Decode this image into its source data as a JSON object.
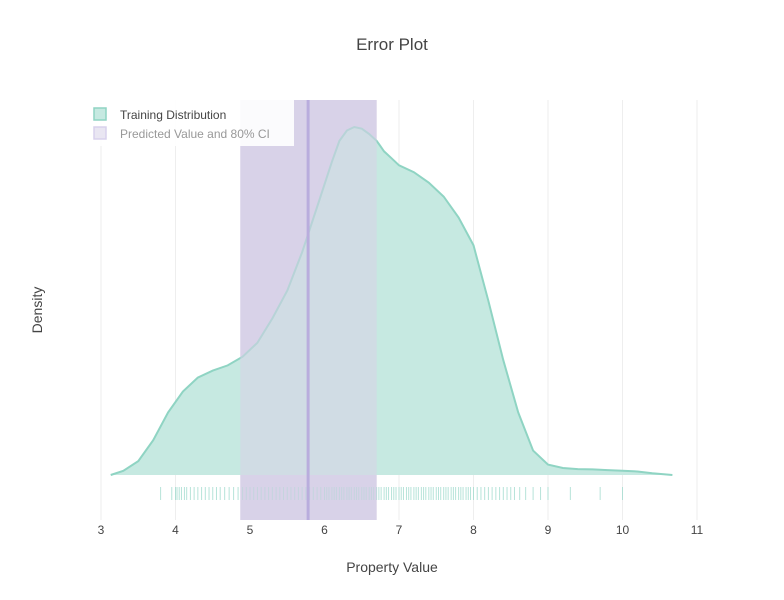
{
  "chart_data": {
    "type": "area",
    "title": "Error Plot",
    "xlabel": "Property Value",
    "ylabel": "Density",
    "xlim": [
      3,
      11
    ],
    "ylim": [
      0,
      1.0
    ],
    "x_ticks": [
      "3",
      "4",
      "5",
      "6",
      "7",
      "8",
      "9",
      "10",
      "11"
    ],
    "grid": "vertical",
    "legend_position": "top-left",
    "colors": {
      "training_fill": "#c6e9e1",
      "training_line": "#8fd4c3",
      "ci_fill": "#d8d2e8",
      "predicted_line": "#b9addd",
      "rug": "#9ed9cc"
    },
    "series": [
      {
        "name": "Training Distribution",
        "x": [
          3.13,
          3.3,
          3.5,
          3.7,
          3.9,
          4.1,
          4.3,
          4.5,
          4.7,
          4.9,
          5.1,
          5.3,
          5.5,
          5.7,
          5.9,
          6.1,
          6.2,
          6.3,
          6.4,
          6.5,
          6.6,
          6.7,
          6.8,
          6.9,
          7.0,
          7.2,
          7.4,
          7.6,
          7.8,
          8.0,
          8.2,
          8.4,
          8.6,
          8.8,
          9.0,
          9.2,
          9.4,
          9.6,
          9.8,
          10.0,
          10.2,
          10.4,
          10.67
        ],
        "y": [
          0.0,
          0.012,
          0.04,
          0.1,
          0.18,
          0.24,
          0.28,
          0.3,
          0.315,
          0.34,
          0.38,
          0.45,
          0.53,
          0.64,
          0.77,
          0.9,
          0.96,
          0.99,
          1.0,
          0.995,
          0.98,
          0.96,
          0.93,
          0.91,
          0.89,
          0.87,
          0.84,
          0.8,
          0.74,
          0.66,
          0.5,
          0.33,
          0.18,
          0.07,
          0.03,
          0.02,
          0.017,
          0.016,
          0.014,
          0.012,
          0.01,
          0.005,
          0.0
        ]
      },
      {
        "name": "Predicted Value and 80% CI",
        "predicted": 5.78,
        "ci": [
          4.87,
          6.7
        ]
      }
    ],
    "rug_values": [
      3.8,
      3.95,
      4.0,
      4.02,
      4.05,
      4.08,
      4.12,
      4.15,
      4.2,
      4.25,
      4.3,
      4.35,
      4.4,
      4.45,
      4.5,
      4.55,
      4.6,
      4.66,
      4.72,
      4.78,
      4.84,
      4.9,
      4.95,
      5.0,
      5.05,
      5.1,
      5.15,
      5.2,
      5.25,
      5.3,
      5.35,
      5.4,
      5.45,
      5.5,
      5.55,
      5.6,
      5.65,
      5.7,
      5.75,
      5.8,
      5.85,
      5.9,
      5.95,
      6.0,
      6.03,
      6.06,
      6.1,
      6.13,
      6.16,
      6.2,
      6.23,
      6.26,
      6.3,
      6.33,
      6.36,
      6.4,
      6.43,
      6.46,
      6.5,
      6.53,
      6.56,
      6.6,
      6.63,
      6.66,
      6.7,
      6.73,
      6.76,
      6.8,
      6.83,
      6.86,
      6.9,
      6.93,
      6.96,
      7.0,
      7.03,
      7.06,
      7.1,
      7.13,
      7.16,
      7.2,
      7.23,
      7.26,
      7.3,
      7.33,
      7.36,
      7.4,
      7.43,
      7.46,
      7.5,
      7.53,
      7.56,
      7.6,
      7.63,
      7.66,
      7.7,
      7.73,
      7.76,
      7.8,
      7.83,
      7.86,
      7.9,
      7.93,
      7.96,
      8.0,
      8.05,
      8.1,
      8.15,
      8.2,
      8.25,
      8.3,
      8.35,
      8.4,
      8.45,
      8.5,
      8.55,
      8.62,
      8.7,
      8.8,
      8.9,
      9.0,
      9.3,
      9.7,
      10.0
    ]
  }
}
